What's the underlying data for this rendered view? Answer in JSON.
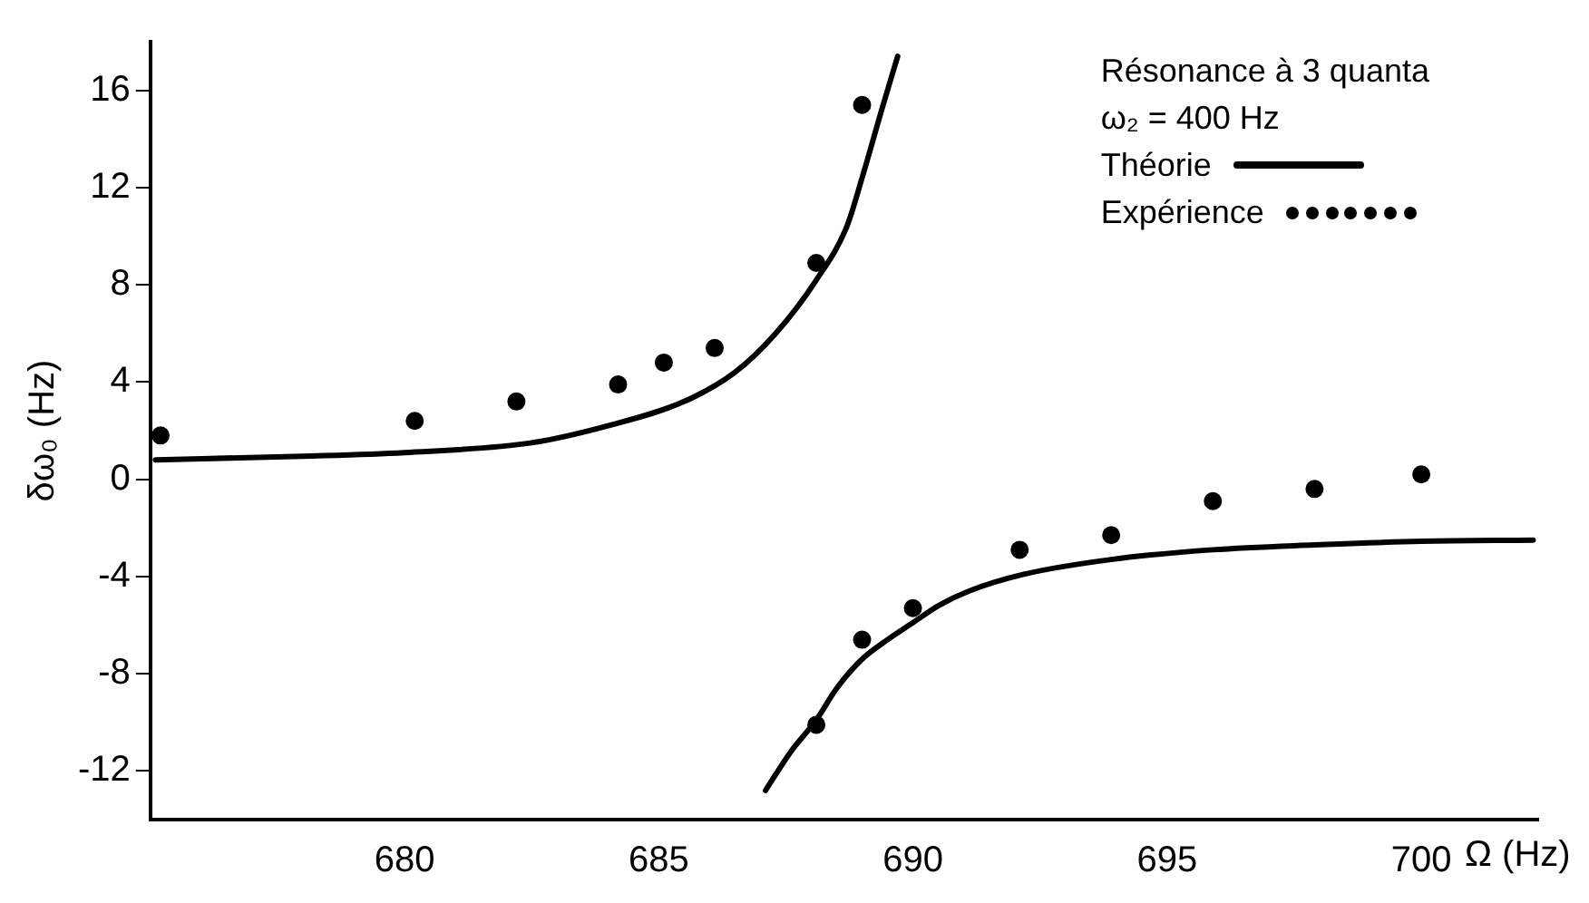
{
  "chart_data": {
    "type": "line",
    "xlabel": "Ω (Hz)",
    "ylabel": "δω₀ (Hz)",
    "legend_title": "Résonance à 3 quanta",
    "annotations": [
      "ω₂ = 400 Hz"
    ],
    "xlim": [
      675,
      702.3
    ],
    "xticks": [
      680,
      685,
      690,
      695,
      700
    ],
    "ylim": [
      -14,
      18
    ],
    "yticks": [
      -12,
      -8,
      -4,
      0,
      4,
      8,
      12,
      16
    ],
    "grid": false,
    "legend": "top right",
    "series": [
      {
        "name": "Théorie",
        "color": "#000000",
        "marker": "none",
        "line_style": "solid",
        "x": [
          675.1,
          678,
          680,
          682.5,
          684,
          685.5,
          686.5,
          687.3,
          688.1,
          688.7,
          689.0,
          689.4,
          689.7
        ],
        "values": [
          0.8,
          0.95,
          1.1,
          1.5,
          2.2,
          3.2,
          4.4,
          6.0,
          8.2,
          10.4,
          12.4,
          15.3,
          17.4
        ]
      },
      {
        "type": "line",
        "color": "#000000",
        "marker": "none",
        "line_style": "solid",
        "x": [
          687.1,
          687.6,
          688.1,
          688.5,
          689,
          689.5,
          690,
          690.5,
          691.1,
          692.2,
          693.9,
          695.9,
          697.9,
          700,
          702.2
        ],
        "values": [
          -12.8,
          -11.2,
          -9.9,
          -8.6,
          -7.4,
          -6.6,
          -5.9,
          -5.2,
          -4.6,
          -3.9,
          -3.3,
          -2.9,
          -2.7,
          -2.55,
          -2.5
        ]
      },
      {
        "name": "Expérience",
        "type": "scatter",
        "color": "#000000",
        "marker": "circle",
        "x": [
          675.2,
          680.2,
          682.2,
          684.2,
          685.1,
          686.1,
          688.1,
          689.0,
          688.1,
          689.0,
          690.0,
          692.1,
          693.9,
          695.9,
          697.9,
          700.0
        ],
        "values": [
          1.8,
          2.4,
          3.2,
          3.9,
          4.8,
          5.4,
          8.9,
          15.4,
          -10.1,
          -6.6,
          -5.3,
          -2.9,
          -2.3,
          -0.9,
          -0.4,
          0.2
        ]
      }
    ]
  }
}
